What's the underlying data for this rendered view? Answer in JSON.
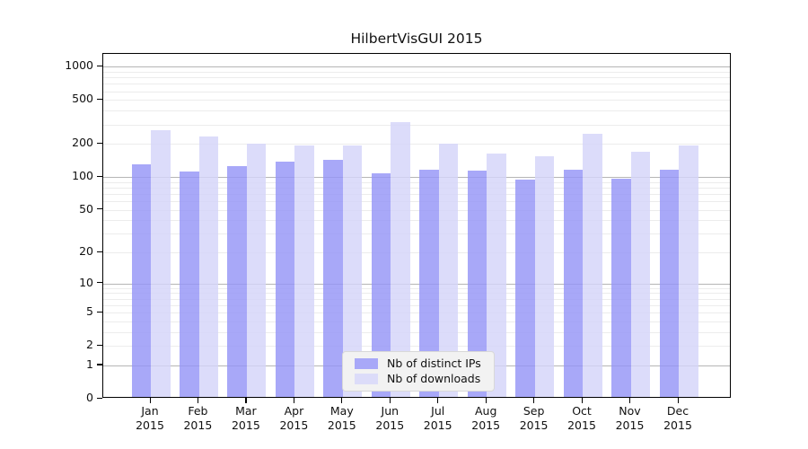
{
  "title": "HilbertVisGUI 2015",
  "chart_data": {
    "type": "bar",
    "title": "HilbertVisGUI 2015",
    "y_scale": "log-like (position ~ log10(1+v)), 0 at baseline",
    "ylim": [
      0,
      1308
    ],
    "y_tick_values": [
      0,
      1,
      2,
      5,
      10,
      20,
      50,
      100,
      200,
      500,
      1000
    ],
    "y_tick_labels": [
      "0",
      "1",
      "2",
      "5",
      "10",
      "20",
      "50",
      "100",
      "200",
      "500",
      "1000"
    ],
    "grid_major_values": [
      1,
      10,
      100,
      1000
    ],
    "grid_minor_values": [
      2,
      3,
      4,
      5,
      6,
      7,
      8,
      9,
      20,
      30,
      40,
      50,
      60,
      70,
      80,
      90,
      200,
      300,
      400,
      500,
      600,
      700,
      800,
      900
    ],
    "categories": [
      "Jan",
      "Feb",
      "Mar",
      "Apr",
      "May",
      "Jun",
      "Jul",
      "Aug",
      "Sep",
      "Oct",
      "Nov",
      "Dec"
    ],
    "year": "2015",
    "series": [
      {
        "name": "Nb of distinct IPs",
        "color": "#9595f6",
        "legend_color": "#a8a8f8",
        "values": [
          125,
          109,
          122,
          134,
          138,
          104,
          113,
          111,
          91,
          113,
          93,
          112
        ]
      },
      {
        "name": "Nb of downloads",
        "color": "#d4d4f9",
        "legend_color": "#dcdcf9",
        "values": [
          257,
          224,
          194,
          188,
          188,
          305,
          193,
          157,
          149,
          239,
          163,
          188
        ]
      }
    ],
    "legend_position": "bottom-center inside plot",
    "grid": true
  },
  "colors": {
    "background": "#ffffff",
    "axis": "#000000",
    "grid_minor": "#ececec",
    "grid_major": "#b5b5b5",
    "legend_background": "#f2f2f2",
    "legend_border": "#d8d8d8",
    "text": "#111111"
  }
}
